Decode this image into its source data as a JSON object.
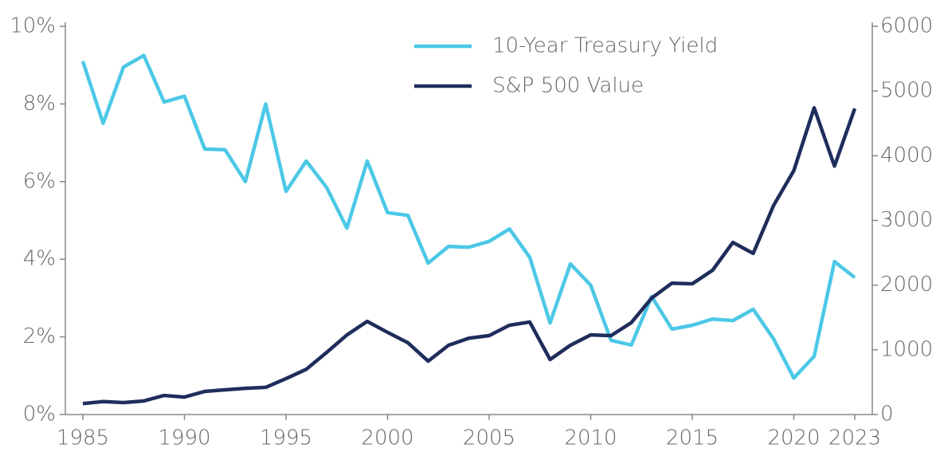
{
  "chart_data": {
    "type": "line",
    "x": [
      1985,
      1986,
      1987,
      1988,
      1989,
      1990,
      1991,
      1992,
      1993,
      1994,
      1995,
      1996,
      1997,
      1998,
      1999,
      2000,
      2001,
      2002,
      2003,
      2004,
      2005,
      2006,
      2007,
      2008,
      2009,
      2010,
      2011,
      2012,
      2013,
      2014,
      2015,
      2016,
      2017,
      2018,
      2019,
      2020,
      2021,
      2022,
      2023
    ],
    "series": [
      {
        "name": "10-Year Treasury Yield",
        "color": "#4cc8e6",
        "values": [
          9.1,
          7.5,
          8.95,
          9.25,
          8.05,
          8.2,
          6.84,
          6.82,
          6.0,
          8.0,
          5.75,
          6.53,
          5.85,
          4.8,
          6.53,
          5.2,
          5.13,
          3.9,
          4.33,
          4.31,
          4.46,
          4.78,
          4.05,
          2.36,
          3.88,
          3.33,
          1.91,
          1.79,
          3.04,
          2.2,
          2.3,
          2.46,
          2.42,
          2.71,
          1.95,
          0.94,
          1.5,
          3.94,
          3.53
        ]
      },
      {
        "name": "S&P 500 Value",
        "color": "#1f2d5c",
        "axis": "y2",
        "values": [
          170,
          200,
          185,
          210,
          295,
          270,
          357,
          382,
          405,
          420,
          555,
          700,
          960,
          1230,
          1440,
          1270,
          1110,
          825,
          1070,
          1180,
          1220,
          1380,
          1430,
          850,
          1070,
          1230,
          1220,
          1420,
          1800,
          2030,
          2020,
          2230,
          2660,
          2490,
          3230,
          3770,
          4740,
          3840,
          4730
        ]
      }
    ],
    "xlim": [
      1985,
      2023
    ],
    "xticks": [
      1985,
      1990,
      1995,
      2000,
      2005,
      2010,
      2015,
      2020,
      2023
    ],
    "ylim": [
      0,
      10
    ],
    "yticks": [
      {
        "value": 0,
        "label": "0%"
      },
      {
        "value": 2,
        "label": "2%"
      },
      {
        "value": 4,
        "label": "4%"
      },
      {
        "value": 6,
        "label": "6%"
      },
      {
        "value": 8,
        "label": "8%"
      },
      {
        "value": 10,
        "label": "10%"
      }
    ],
    "y2lim": [
      0,
      6000
    ],
    "y2ticks": [
      0,
      1000,
      2000,
      3000,
      4000,
      5000,
      6000
    ],
    "legend": "top"
  }
}
